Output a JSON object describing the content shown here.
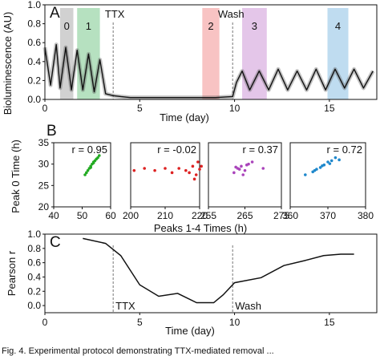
{
  "figure": {
    "panel_letters": [
      "A",
      "B",
      "C"
    ],
    "caption_fragment": "Fig. 4.   Experimental protocol demonstrating TTX-mediated removal ..."
  },
  "chart_data": [
    {
      "panel": "A",
      "type": "line",
      "title": "",
      "xlabel": "Time (day)",
      "ylabel": "Bioluminescence (AU)",
      "xlim": [
        0,
        17.5
      ],
      "ylim": [
        0,
        1.0
      ],
      "x_ticks": [
        0,
        5,
        10,
        15
      ],
      "y_ticks": [
        "0.0",
        "0.2",
        "0.4",
        "0.6",
        "0.8",
        "1.0"
      ],
      "annotations": [
        {
          "label": "TTX",
          "x": 3.6,
          "kind": "dashed-line"
        },
        {
          "label": "Wash",
          "x": 9.9,
          "kind": "dashed-line"
        }
      ],
      "shaded_windows": [
        {
          "label": "0",
          "x0": 0.8,
          "x1": 1.5,
          "color": "#b8b8b8"
        },
        {
          "label": "1",
          "x0": 1.7,
          "x1": 2.9,
          "color": "#8fd19e"
        },
        {
          "label": "2",
          "x0": 8.3,
          "x1": 9.2,
          "color": "#f4a3a3"
        },
        {
          "label": "3",
          "x0": 10.4,
          "x1": 11.7,
          "color": "#d6a8dd"
        },
        {
          "label": "4",
          "x0": 14.9,
          "x1": 16.0,
          "color": "#9cc9e8"
        }
      ],
      "series": [
        {
          "x": [
            0,
            0.3,
            0.6,
            0.8,
            1.1,
            1.4,
            1.7,
            2.0,
            2.3,
            2.6,
            2.9,
            3.2,
            3.6,
            4.0,
            4.5,
            5.0,
            6.0,
            7.0,
            8.0,
            9.0,
            9.9,
            10.1,
            10.4,
            10.8,
            11.3,
            11.8,
            12.3,
            12.8,
            13.3,
            13.8,
            14.3,
            14.8,
            15.3,
            15.8,
            16.3,
            16.8,
            17.3
          ],
          "y": [
            0.55,
            0.15,
            0.58,
            0.12,
            0.55,
            0.1,
            0.52,
            0.1,
            0.48,
            0.08,
            0.42,
            0.06,
            0.04,
            0.03,
            0.02,
            0.02,
            0.02,
            0.02,
            0.02,
            0.02,
            0.03,
            0.18,
            0.3,
            0.1,
            0.3,
            0.1,
            0.32,
            0.1,
            0.3,
            0.1,
            0.32,
            0.1,
            0.32,
            0.12,
            0.32,
            0.12,
            0.3
          ]
        }
      ]
    },
    {
      "panel": "B",
      "type": "scatter",
      "ylabel": "Peak 0 Time (h)",
      "xlabel": "Peaks 1-4 Times (h)",
      "ylim": [
        20,
        35
      ],
      "y_ticks": [
        "20",
        "25",
        "30",
        "35"
      ],
      "subplots": [
        {
          "peak": 1,
          "r_label": "r = 0.95",
          "color": "#22aa22",
          "xlim": [
            40,
            60
          ],
          "x_ticks": [
            "40",
            "50",
            "60"
          ],
          "points": [
            [
              51,
              27.5
            ],
            [
              52,
              28.5
            ],
            [
              53,
              29.5
            ],
            [
              54,
              30.5
            ],
            [
              55,
              31.2
            ],
            [
              56,
              32
            ],
            [
              52.5,
              29
            ],
            [
              53.5,
              30
            ],
            [
              54.5,
              30.8
            ],
            [
              51.5,
              28
            ],
            [
              55.5,
              31.5
            ],
            [
              53,
              29.2
            ],
            [
              54,
              30.3
            ]
          ]
        },
        {
          "peak": 2,
          "r_label": "r = -0.02",
          "color": "#dd2222",
          "xlim": [
            200,
            220
          ],
          "x_ticks": [
            "200",
            "210",
            "220"
          ],
          "points": [
            [
              201,
              28.5
            ],
            [
              204,
              29
            ],
            [
              207,
              28.5
            ],
            [
              210,
              29
            ],
            [
              212,
              28
            ],
            [
              214,
              29
            ],
            [
              216,
              28.5
            ],
            [
              218,
              29.5
            ],
            [
              219,
              27.5
            ],
            [
              220,
              28.8
            ],
            [
              219.5,
              30.5
            ],
            [
              218.5,
              26.5
            ],
            [
              220.5,
              29.5
            ],
            [
              217,
              28
            ]
          ]
        },
        {
          "peak": 3,
          "r_label": "r = 0.37",
          "color": "#aa44bb",
          "xlim": [
            255,
            275
          ],
          "x_ticks": [
            "255",
            "265",
            "275"
          ],
          "points": [
            [
              262,
              28
            ],
            [
              263,
              29
            ],
            [
              264,
              29.5
            ],
            [
              265,
              28.5
            ],
            [
              266,
              30
            ],
            [
              264.5,
              27.5
            ],
            [
              263.5,
              28.8
            ],
            [
              265.5,
              29.8
            ],
            [
              267,
              30.5
            ],
            [
              262.5,
              29.3
            ],
            [
              270,
              29
            ]
          ]
        },
        {
          "peak": 4,
          "r_label": "r = 0.72",
          "color": "#1f88cc",
          "xlim": [
            360,
            380
          ],
          "x_ticks": [
            "360",
            "370",
            "380"
          ],
          "points": [
            [
              364,
              27.5
            ],
            [
              366,
              28.2
            ],
            [
              367,
              28.8
            ],
            [
              368,
              29.2
            ],
            [
              369,
              29.8
            ],
            [
              370,
              30.5
            ],
            [
              371,
              30.8
            ],
            [
              372,
              31.5
            ],
            [
              366.5,
              28.5
            ],
            [
              368.5,
              29.6
            ],
            [
              370.5,
              30.1
            ],
            [
              373,
              31
            ]
          ]
        }
      ]
    },
    {
      "panel": "C",
      "type": "line",
      "xlabel": "Time (day)",
      "ylabel": "Pearson r",
      "xlim": [
        0,
        17.5
      ],
      "ylim": [
        -0.1,
        1.0
      ],
      "x_ticks": [
        "0",
        "5",
        "10",
        "15"
      ],
      "y_ticks": [
        "0.0",
        "0.2",
        "0.4",
        "0.6",
        "0.8",
        "1.0"
      ],
      "annotations": [
        {
          "label": "TTX",
          "x": 3.6
        },
        {
          "label": "Wash",
          "x": 9.9
        }
      ],
      "series": [
        {
          "x": [
            2.0,
            3.2,
            4.0,
            5.0,
            6.0,
            7.0,
            8.0,
            8.9,
            9.4,
            10.0,
            11.4,
            12.6,
            13.7,
            14.7,
            15.6,
            16.3
          ],
          "y": [
            0.94,
            0.87,
            0.7,
            0.29,
            0.13,
            0.17,
            0.04,
            0.04,
            0.15,
            0.32,
            0.39,
            0.56,
            0.63,
            0.7,
            0.72,
            0.72
          ]
        }
      ]
    }
  ]
}
